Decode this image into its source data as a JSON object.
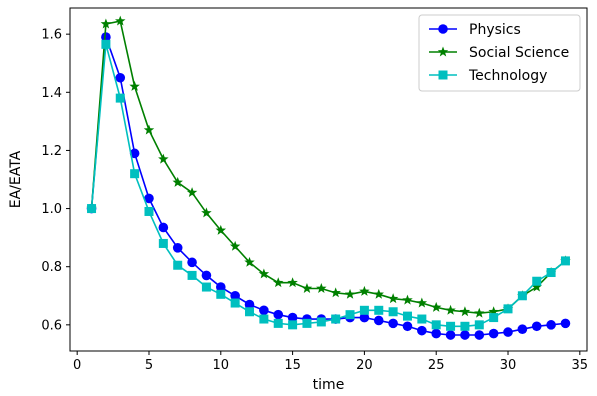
{
  "chart_data": {
    "type": "line",
    "xlabel": "time",
    "ylabel": "EA/EATA",
    "xlim": [
      -0.5,
      35.5
    ],
    "ylim": [
      0.51,
      1.69
    ],
    "xticks": [
      0,
      5,
      10,
      15,
      20,
      25,
      30,
      35
    ],
    "yticks": [
      0.6,
      0.8,
      1.0,
      1.2,
      1.4,
      1.6
    ],
    "grid": false,
    "legend_position": "top-right",
    "x": [
      1,
      2,
      3,
      4,
      5,
      6,
      7,
      8,
      9,
      10,
      11,
      12,
      13,
      14,
      15,
      16,
      17,
      18,
      19,
      20,
      21,
      22,
      23,
      24,
      25,
      26,
      27,
      28,
      29,
      30,
      31,
      32,
      33,
      34
    ],
    "series": [
      {
        "name": "Physics",
        "color": "#0000ff",
        "marker": "circle",
        "values": [
          1.0,
          1.59,
          1.45,
          1.19,
          1.035,
          0.935,
          0.865,
          0.815,
          0.77,
          0.73,
          0.7,
          0.67,
          0.65,
          0.635,
          0.625,
          0.62,
          0.62,
          0.62,
          0.625,
          0.625,
          0.615,
          0.605,
          0.595,
          0.58,
          0.57,
          0.565,
          0.565,
          0.565,
          0.57,
          0.575,
          0.585,
          0.595,
          0.6,
          0.605
        ]
      },
      {
        "name": "Social Science",
        "color": "#008000",
        "marker": "star",
        "values": [
          1.0,
          1.635,
          1.645,
          1.42,
          1.27,
          1.17,
          1.09,
          1.055,
          0.985,
          0.925,
          0.87,
          0.815,
          0.775,
          0.745,
          0.745,
          0.725,
          0.725,
          0.71,
          0.705,
          0.715,
          0.705,
          0.69,
          0.685,
          0.675,
          0.66,
          0.65,
          0.645,
          0.64,
          0.645,
          0.655,
          0.7,
          0.73,
          0.78,
          0.82
        ]
      },
      {
        "name": "Technology",
        "color": "#00bfbf",
        "marker": "square",
        "values": [
          1.0,
          1.565,
          1.38,
          1.12,
          0.99,
          0.88,
          0.805,
          0.77,
          0.73,
          0.705,
          0.675,
          0.645,
          0.62,
          0.605,
          0.6,
          0.605,
          0.61,
          0.62,
          0.635,
          0.65,
          0.65,
          0.645,
          0.63,
          0.62,
          0.6,
          0.595,
          0.595,
          0.6,
          0.625,
          0.655,
          0.7,
          0.75,
          0.78,
          0.82
        ]
      }
    ]
  }
}
